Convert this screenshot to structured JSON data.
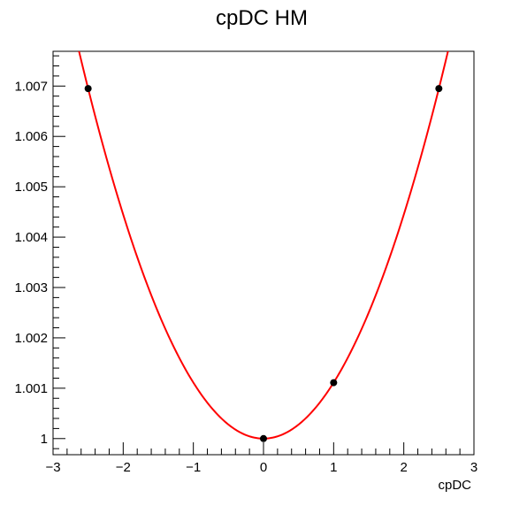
{
  "chart_data": {
    "type": "scatter",
    "title": "cpDC HM",
    "xlabel": "cpDC",
    "ylabel": "",
    "xlim": [
      -3,
      3
    ],
    "ylim": [
      0.99968,
      1.00769
    ],
    "x_ticks": [
      -3,
      -2,
      -1,
      0,
      1,
      2,
      3
    ],
    "x_tick_labels": [
      "−3",
      "−2",
      "−1",
      "0",
      "1",
      "2",
      "3"
    ],
    "y_ticks": [
      1.0,
      1.001,
      1.002,
      1.003,
      1.004,
      1.005,
      1.006,
      1.007
    ],
    "y_tick_labels": [
      "1",
      "1.001",
      "1.002",
      "1.003",
      "1.004",
      "1.005",
      "1.006",
      "1.007"
    ],
    "grid": false,
    "series": [
      {
        "kind": "points",
        "x": [
          -2.5,
          0,
          1,
          2.5
        ],
        "y": [
          1.00695,
          1.0,
          1.00111,
          1.00695
        ],
        "color": "#000000"
      },
      {
        "kind": "fit-curve",
        "function": "quadratic",
        "coefficients": [
          1.0,
          0.0,
          0.001112
        ],
        "x_range": [
          -2.7,
          2.7
        ],
        "color": "#ff0000"
      }
    ]
  }
}
